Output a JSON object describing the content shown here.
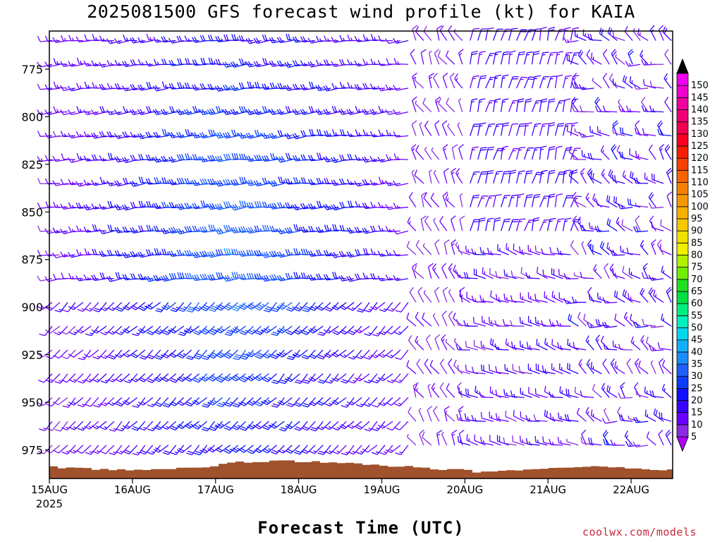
{
  "chart_data": {
    "type": "wind_barb_time_height",
    "title": "2025081500 GFS forecast wind profile (kt) for KAIA",
    "xlabel": "Forecast Time (UTC)",
    "credit": "coolwx.com/models",
    "units": "kt",
    "x_ticks": [
      "15AUG",
      "16AUG",
      "17AUG",
      "18AUG",
      "19AUG",
      "20AUG",
      "21AUG",
      "22AUG"
    ],
    "x_year_label": "2025",
    "y_ticks": [
      775,
      800,
      825,
      850,
      875,
      900,
      925,
      950,
      975
    ],
    "ylim": [
      990,
      755
    ],
    "y_inverted": true,
    "xlim_days": [
      0,
      7.5
    ],
    "colorbar": {
      "levels": [
        5,
        10,
        15,
        20,
        25,
        30,
        35,
        40,
        45,
        50,
        55,
        60,
        65,
        70,
        75,
        80,
        85,
        90,
        95,
        100,
        105,
        110,
        115,
        120,
        125,
        130,
        135,
        140,
        145,
        150
      ],
      "colors": [
        "#8a2be2",
        "#6a00ff",
        "#3a00ff",
        "#1010ff",
        "#0b3cff",
        "#1e5fff",
        "#1a8cff",
        "#10b0ff",
        "#00d8f0",
        "#00f0c0",
        "#00f080",
        "#00e040",
        "#20e020",
        "#70f000",
        "#b0f000",
        "#f0f000",
        "#f0e000",
        "#f8c800",
        "#f8b000",
        "#f89800",
        "#f88000",
        "#f86400",
        "#f84000",
        "#f82000",
        "#f80020",
        "#f00050",
        "#f00078",
        "#f000a0",
        "#f000d0",
        "#f000f0"
      ],
      "max_arrow_color": "#000000",
      "min_arrow_color": "#b000ff"
    },
    "terrain": {
      "color": "#a0522d",
      "surface_pressure_approx_hpa": 984
    },
    "wind_regimes": [
      {
        "period": "15AUG-19AUG",
        "direction_deg": 250,
        "speed_kt_range": [
          5,
          40
        ],
        "note": "westerly/southwesterly, strongest 875-950 hPa on 17AUG-18AUG"
      },
      {
        "period": "19AUG-20AUG",
        "direction_deg": 330,
        "speed_kt_range": [
          5,
          15
        ],
        "note": "light northwesterly"
      },
      {
        "period": "20AUG-21AUG",
        "direction_deg": 20,
        "speed_kt_range": [
          10,
          20
        ],
        "note": "northerly upper levels; westerly low levels"
      },
      {
        "period": "21AUG-22AUG",
        "direction_deg": 300,
        "speed_kt_range": [
          5,
          25
        ],
        "note": "variable, west/northwest"
      }
    ]
  }
}
